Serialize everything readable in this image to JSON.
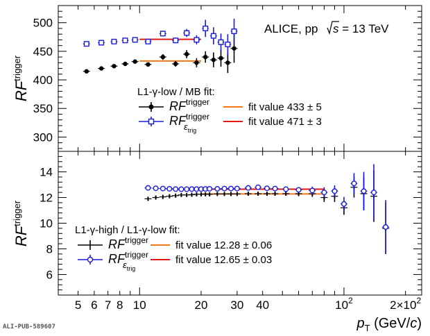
{
  "experiment_label": "ALICE, pp",
  "energy_label": "s",
  "energy_value": " = 13 TeV",
  "pub_id": "ALI-PUB-589607",
  "colors": {
    "black": "#000000",
    "blue": "#1a1adc",
    "orange": "#f07818",
    "red": "#e01818"
  },
  "chart_data": [
    {
      "type": "scatter",
      "panel": "top",
      "ylabel": "RF",
      "ylabel_sup": "trigger",
      "ylim": [
        275,
        530
      ],
      "yticks": [
        300,
        350,
        400,
        450,
        500
      ],
      "xscale": "log",
      "xlim": [
        4,
        240
      ],
      "legend_header": "L1-γ-low / MB fit:",
      "legend_placement": "center",
      "series": [
        {
          "name": "RF",
          "name_sup": "trigger",
          "marker": "filled-circle",
          "color": "#000000",
          "x": [
            5.5,
            6.5,
            7.5,
            8.5,
            9.5,
            11,
            13,
            15,
            17,
            19,
            21,
            23,
            25,
            27,
            29
          ],
          "y": [
            415,
            420,
            424,
            428,
            432,
            427,
            440,
            428,
            445,
            430,
            440,
            435,
            438,
            430,
            455
          ],
          "err": [
            2,
            2,
            2,
            2,
            3,
            3,
            5,
            5,
            7,
            8,
            10,
            13,
            15,
            18,
            25
          ]
        },
        {
          "name": "RF",
          "name_sup": "trigger",
          "name_sub": "ε",
          "name_subsub": "trig",
          "marker": "open-square",
          "color": "#1a1adc",
          "x": [
            5.5,
            6.5,
            7.5,
            8.5,
            9.5,
            11,
            13,
            15,
            17,
            19,
            21,
            23,
            25,
            27,
            29
          ],
          "y": [
            463,
            465,
            467,
            469,
            470,
            467,
            481,
            469,
            482,
            470,
            490,
            477,
            466,
            462,
            485
          ],
          "err": [
            2,
            2,
            2,
            2,
            3,
            3,
            5,
            5,
            7,
            8,
            15,
            15,
            15,
            18,
            22
          ]
        }
      ],
      "fits": [
        {
          "label": "fit value 433 ± 5",
          "value": 433,
          "err": 5,
          "x_range": [
            10,
            20
          ],
          "color": "#f07818"
        },
        {
          "label": "fit value 471 ± 3",
          "value": 471,
          "err": 3,
          "x_range": [
            10,
            20
          ],
          "color": "#e01818"
        }
      ]
    },
    {
      "type": "scatter",
      "panel": "bottom",
      "ylabel": "RF",
      "ylabel_sup": "trigger",
      "ylim": [
        4.4,
        15.6
      ],
      "yticks": [
        6,
        8,
        10,
        12,
        14
      ],
      "xscale": "log",
      "xlim": [
        4,
        240
      ],
      "xlabel": "p",
      "xlabel_sub": "T",
      "xlabel_unit": "(GeV/",
      "xlabel_unit_c": "c",
      "xlabel_close": ")",
      "xticklabels": [
        "5",
        "6",
        "7",
        "8",
        "10",
        "20",
        "30",
        "40",
        "10",
        "2×10"
      ],
      "xtick_sup": "2",
      "legend_header": "L1-γ-high / L1-γ-low fit:",
      "legend_placement": "bottom-left",
      "series": [
        {
          "name": "RF",
          "name_sup": "trigger",
          "marker": "cross",
          "color": "#000000",
          "x": [
            11,
            12,
            13,
            14,
            15,
            16,
            17,
            18,
            19,
            20,
            21,
            22,
            24,
            26,
            28,
            30,
            34,
            38,
            42,
            46,
            52,
            60,
            70,
            80,
            90,
            100,
            112,
            125,
            140,
            160
          ],
          "y": [
            11.9,
            12.0,
            12.05,
            12.1,
            12.15,
            12.2,
            12.2,
            12.22,
            12.25,
            12.25,
            12.25,
            12.25,
            12.28,
            12.28,
            12.28,
            12.28,
            12.3,
            12.3,
            12.3,
            12.3,
            12.3,
            12.3,
            12.3,
            12.0,
            12.1,
            11.2,
            12.8,
            12.3,
            12.1,
            9.6
          ],
          "err": [
            0.15,
            0.12,
            0.1,
            0.1,
            0.1,
            0.1,
            0.1,
            0.1,
            0.1,
            0.1,
            0.1,
            0.1,
            0.1,
            0.1,
            0.1,
            0.1,
            0.12,
            0.12,
            0.12,
            0.15,
            0.15,
            0.2,
            0.25,
            0.35,
            0.45,
            0.55,
            0.8,
            1.3,
            2.0,
            2.0
          ]
        },
        {
          "name": "RF",
          "name_sup": "trigger",
          "name_sub": "ε",
          "name_subsub": "trig",
          "marker": "open-circle",
          "color": "#1a1adc",
          "x": [
            11,
            12,
            13,
            14,
            15,
            16,
            17,
            18,
            19,
            20,
            21,
            22,
            24,
            26,
            28,
            30,
            34,
            38,
            42,
            46,
            52,
            60,
            70,
            80,
            90,
            100,
            112,
            125,
            140,
            160
          ],
          "y": [
            12.75,
            12.72,
            12.7,
            12.68,
            12.66,
            12.65,
            12.65,
            12.66,
            12.66,
            12.66,
            12.67,
            12.68,
            12.68,
            12.7,
            12.7,
            12.7,
            12.75,
            12.8,
            12.72,
            12.7,
            12.65,
            12.6,
            12.55,
            12.4,
            12.5,
            11.5,
            13.1,
            12.5,
            12.4,
            9.7
          ],
          "err": [
            0.08,
            0.07,
            0.06,
            0.06,
            0.06,
            0.06,
            0.06,
            0.06,
            0.06,
            0.06,
            0.06,
            0.06,
            0.07,
            0.07,
            0.07,
            0.08,
            0.08,
            0.1,
            0.1,
            0.12,
            0.15,
            0.2,
            0.3,
            0.4,
            0.45,
            0.55,
            0.8,
            1.5,
            2.2,
            2.1
          ]
        }
      ],
      "fits": [
        {
          "label": "fit value 12.28 ± 0.06",
          "value": 12.28,
          "err": 0.06,
          "x_range": [
            20,
            80
          ],
          "color": "#f07818"
        },
        {
          "label": "fit value 12.65 ± 0.03",
          "value": 12.65,
          "err": 0.03,
          "x_range": [
            15,
            80
          ],
          "color": "#e01818"
        }
      ]
    }
  ]
}
